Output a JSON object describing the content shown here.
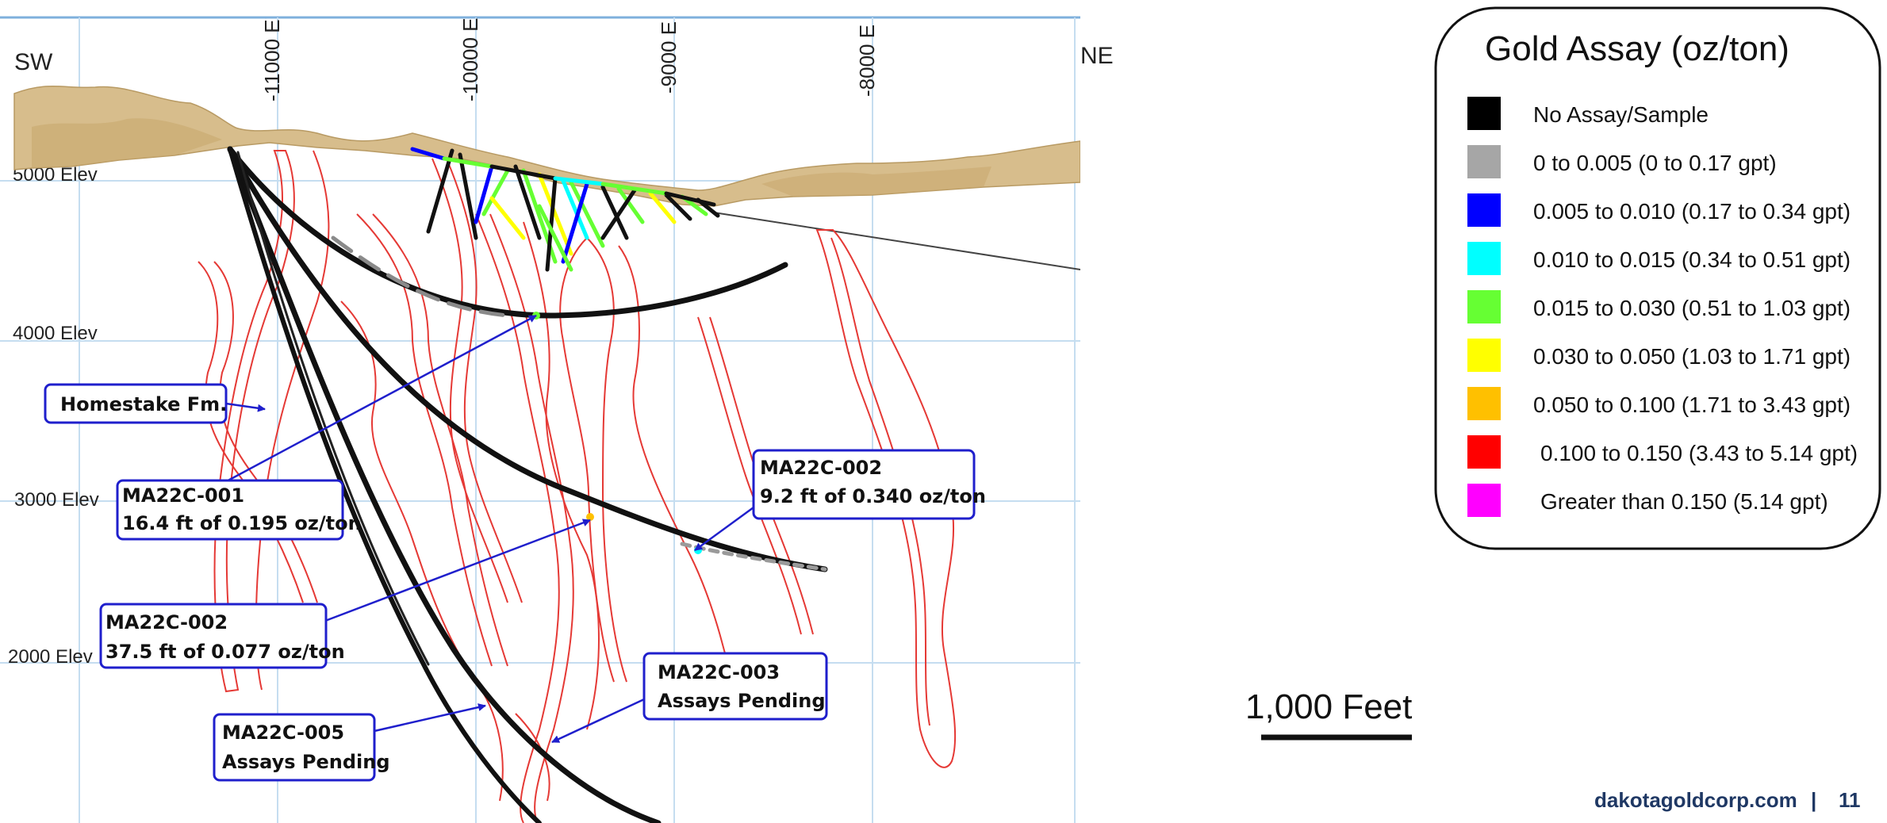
{
  "section": {
    "sw_label": "SW",
    "ne_label": "NE",
    "easting_labels": [
      "-11000 E",
      "-10000 E",
      "-9000 E",
      "-8000 E"
    ],
    "elevation_labels": [
      "5000 Elev",
      "4000 Elev",
      "3000 Elev",
      "2000 Elev"
    ]
  },
  "callouts": {
    "homestake": "Homestake Fm.",
    "c001_hole": "MA22C-001",
    "c001_result": "16.4 ft of 0.195 oz/ton",
    "c002a_hole": "MA22C-002",
    "c002a_result": "37.5 ft of 0.077 oz/ton",
    "c002b_hole": "MA22C-002",
    "c002b_result": "9.2 ft of 0.340 oz/ton",
    "c003_hole": "MA22C-003",
    "c003_result": "Assays Pending",
    "c005_hole": "MA22C-005",
    "c005_result": "Assays Pending"
  },
  "legend": {
    "title": "Gold Assay (oz/ton)",
    "items": [
      {
        "label": "No Assay/Sample",
        "color": "#000000"
      },
      {
        "label": "0 to 0.005 (0 to 0.17 gpt)",
        "color": "#a6a6a6"
      },
      {
        "label": "0.005 to 0.010 (0.17 to 0.34 gpt)",
        "color": "#0000ff"
      },
      {
        "label": "0.010 to 0.015 (0.34 to 0.51 gpt)",
        "color": "#00ffff"
      },
      {
        "label": "0.015 to 0.030 (0.51 to 1.03 gpt)",
        "color": "#66ff33"
      },
      {
        "label": "0.030 to 0.050 (1.03 to 1.71 gpt)",
        "color": "#ffff00"
      },
      {
        "label": "0.050 to 0.100 (1.71 to 3.43 gpt)",
        "color": "#ffc000"
      },
      {
        "label": "0.100 to 0.150 (3.43 to 5.14 gpt)",
        "color": "#ff0000"
      },
      {
        "label": "Greater than 0.150 (5.14 gpt)",
        "color": "#ff00ff"
      }
    ]
  },
  "scale_bar": {
    "label": "1,000 Feet"
  },
  "footer": {
    "website": "dakotagoldcorp.com",
    "separator": "|",
    "page_number": "11"
  },
  "colors": {
    "grid": "#c5ddf0",
    "callout_border": "#1f1fcc",
    "terrain": "#d7bd8c",
    "contour": "#e53935"
  }
}
